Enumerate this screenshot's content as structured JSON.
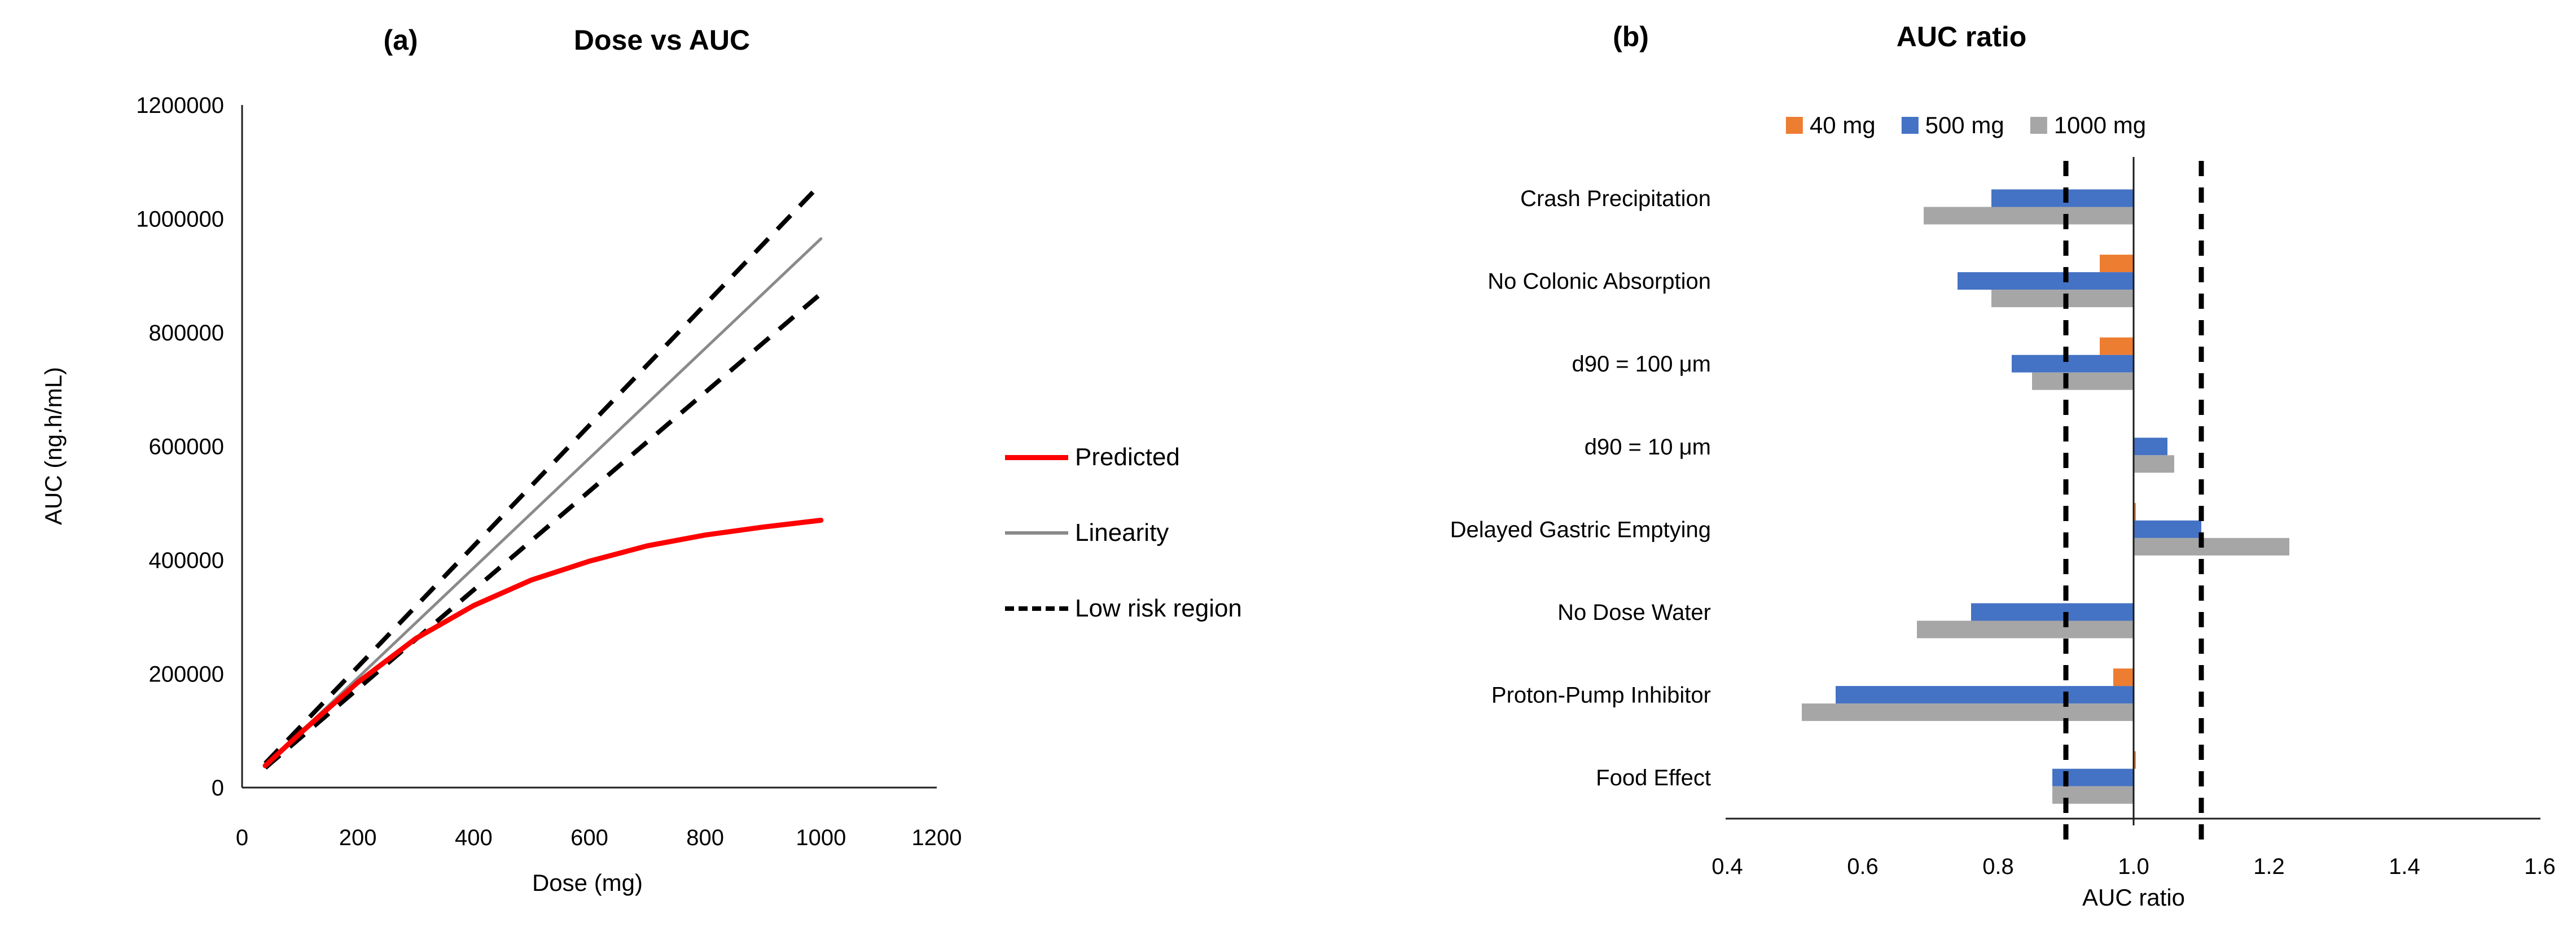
{
  "panels": {
    "a": {
      "tag": "(a)",
      "title": "Dose vs AUC",
      "xlabel": "Dose (mg)",
      "ylabel": "AUC (ng.h/mL)",
      "legend": [
        {
          "label": "Predicted",
          "color": "#ff0000",
          "style": "solid"
        },
        {
          "label": "Linearity",
          "color": "#8a8a8a",
          "style": "solid"
        },
        {
          "label": "Low risk region",
          "color": "#000000",
          "style": "dashed"
        }
      ]
    },
    "b": {
      "tag": "(b)",
      "title": "AUC ratio",
      "xlabel": "AUC ratio",
      "legend": [
        {
          "label": "40 mg",
          "color": "#ED7D31"
        },
        {
          "label": "500 mg",
          "color": "#4472C4"
        },
        {
          "label": "1000 mg",
          "color": "#A6A6A6"
        }
      ]
    }
  },
  "chart_data": [
    {
      "type": "line",
      "title": "Dose vs AUC",
      "xlabel": "Dose (mg)",
      "ylabel": "AUC (ng.h/mL)",
      "xlim": [
        0,
        1200
      ],
      "ylim": [
        0,
        1200000
      ],
      "xticks": [
        0,
        200,
        400,
        600,
        800,
        1000,
        1200
      ],
      "yticks": [
        0,
        200000,
        400000,
        600000,
        800000,
        1000000,
        1200000
      ],
      "grid": false,
      "legend_position": "right",
      "series": [
        {
          "name": "Low risk region (lower, 0.9x linearity)",
          "color": "#000000",
          "dash": true,
          "width": 8,
          "x": [
            40,
            1000
          ],
          "y": [
            34700,
            868500
          ]
        },
        {
          "name": "Low risk region (upper, 1.1x linearity)",
          "color": "#000000",
          "dash": true,
          "width": 8,
          "x": [
            40,
            1000
          ],
          "y": [
            42500,
            1061500
          ]
        },
        {
          "name": "Linearity",
          "color": "#8a8a8a",
          "dash": false,
          "width": 5,
          "x": [
            40,
            1000
          ],
          "y": [
            38600,
            965000
          ]
        },
        {
          "name": "Predicted",
          "color": "#ff0000",
          "dash": false,
          "width": 9,
          "x": [
            40,
            100,
            200,
            300,
            400,
            500,
            600,
            700,
            800,
            900,
            1000
          ],
          "y": [
            38500,
            95000,
            185000,
            262000,
            320000,
            365000,
            398000,
            425000,
            444000,
            458000,
            470000
          ]
        }
      ]
    },
    {
      "type": "bar",
      "orientation": "horizontal",
      "title": "AUC ratio",
      "xlabel": "AUC ratio",
      "xlim": [
        0.4,
        1.6
      ],
      "xticks": [
        0.4,
        0.6,
        0.8,
        1.0,
        1.2,
        1.4,
        1.6
      ],
      "baseline": 1.0,
      "guides": [
        0.9,
        1.1
      ],
      "grid": false,
      "legend_position": "top",
      "categories": [
        "Crash Precipitation",
        "No Colonic Absorption",
        "d90 = 100 μm",
        "d90 = 10 μm",
        "Delayed Gastric Emptying",
        "No Dose Water",
        "Proton-Pump Inhibitor",
        "Food Effect"
      ],
      "series": [
        {
          "name": "40 mg",
          "color": "#ED7D31",
          "values": [
            null,
            0.95,
            0.95,
            null,
            1.0,
            null,
            0.97,
            1.0
          ]
        },
        {
          "name": "500 mg",
          "color": "#4472C4",
          "values": [
            0.79,
            0.74,
            0.82,
            1.05,
            1.1,
            0.76,
            0.56,
            0.88
          ]
        },
        {
          "name": "1000 mg",
          "color": "#A6A6A6",
          "values": [
            0.69,
            0.79,
            0.85,
            1.06,
            1.23,
            0.68,
            0.51,
            0.88
          ]
        }
      ]
    }
  ]
}
